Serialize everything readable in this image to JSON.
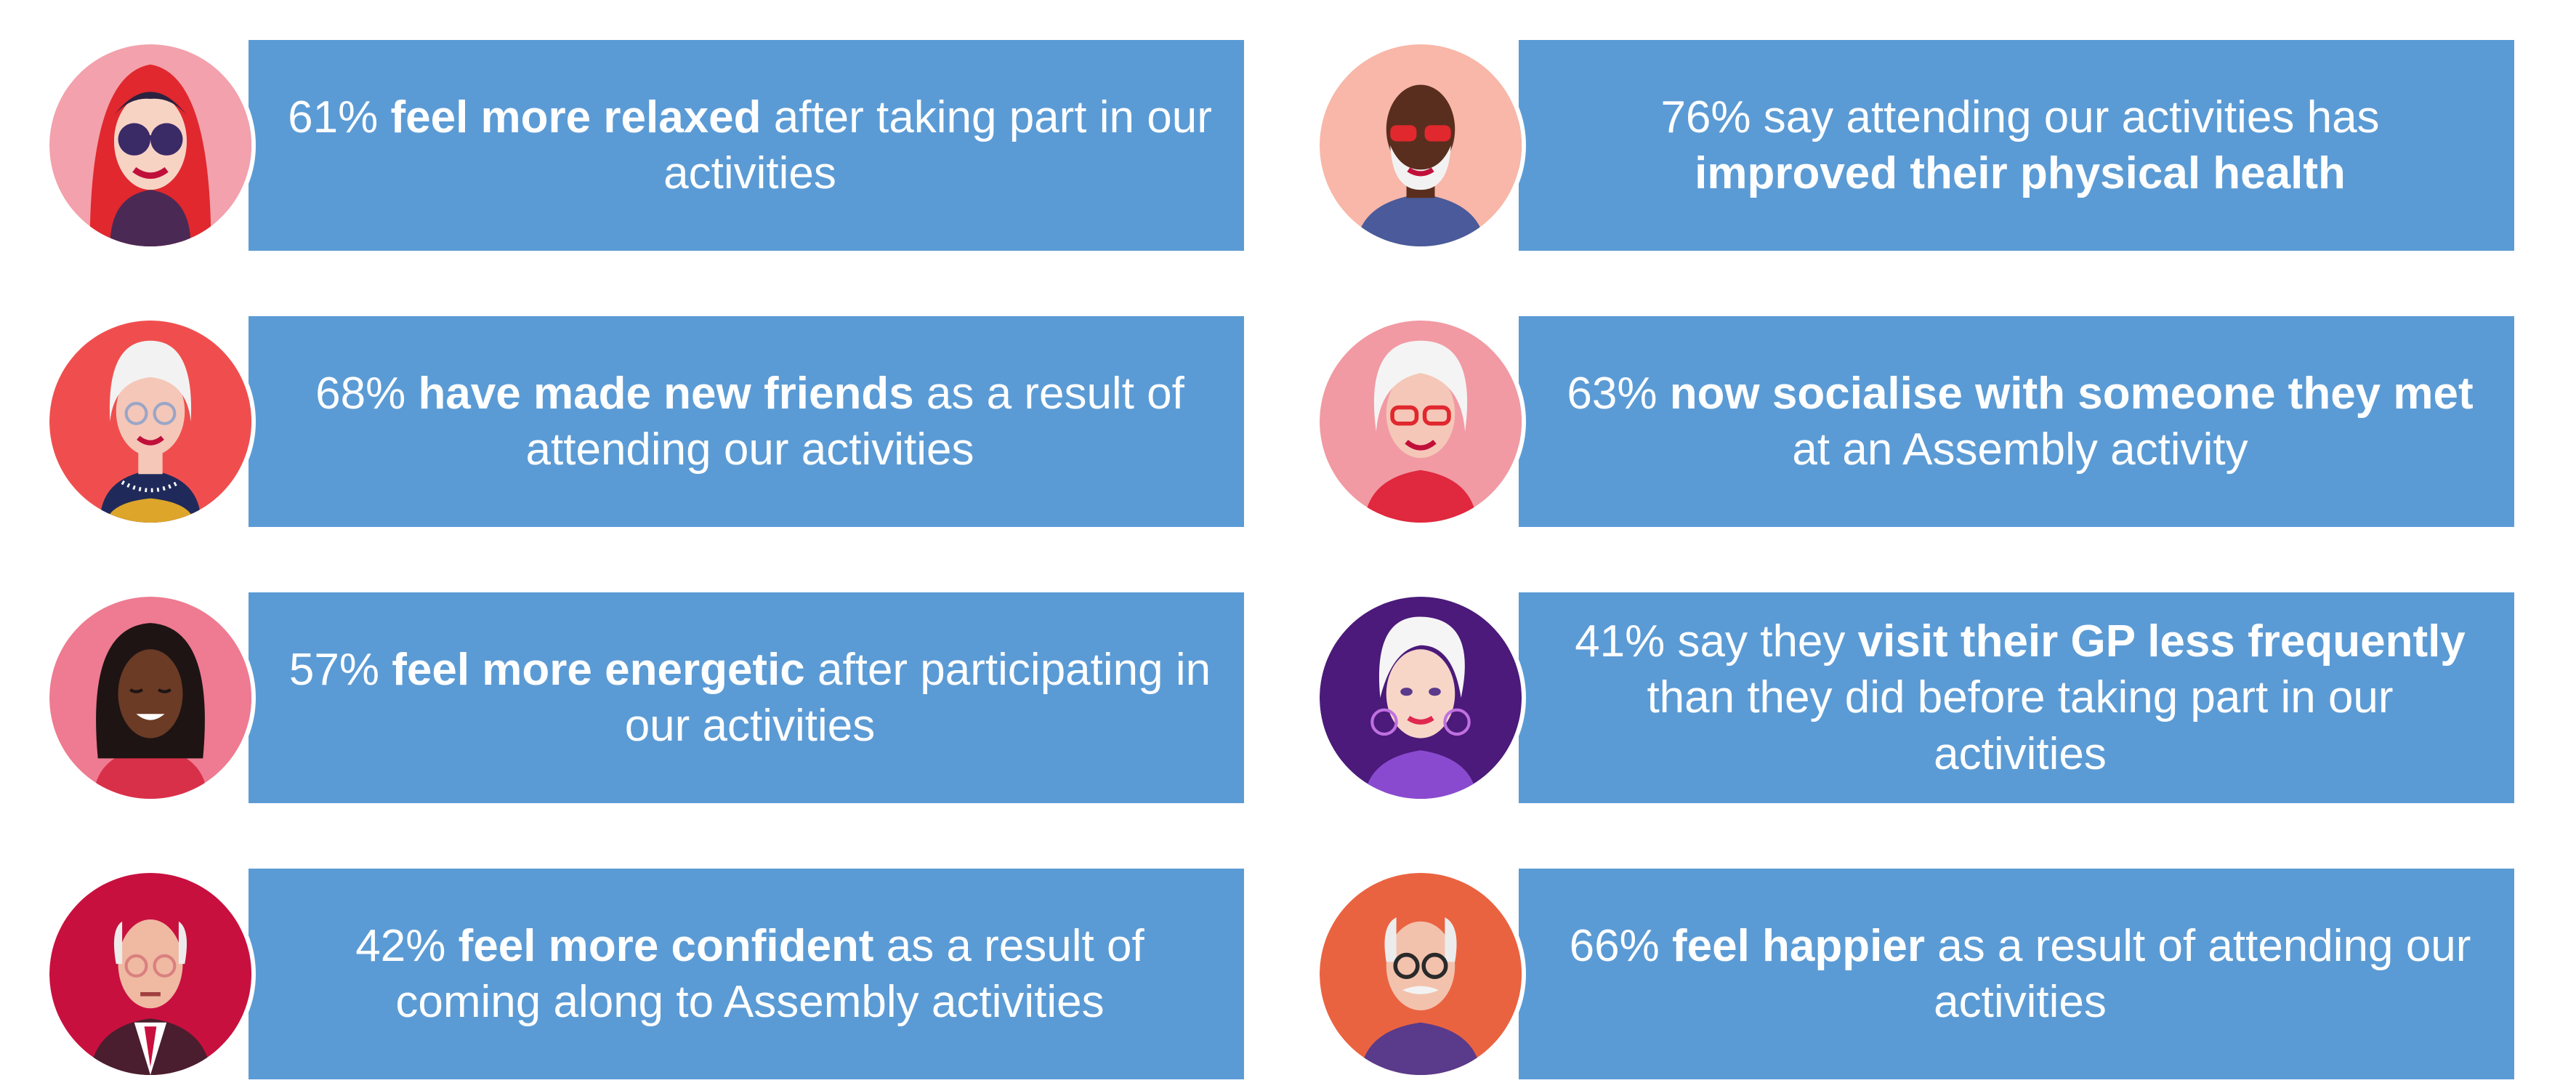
{
  "cards": [
    {
      "pre": "61% ",
      "bold": "feel more relaxed",
      "post": " after taking part in our activities",
      "avatar_icon": "woman-red-hood-sunglasses-icon",
      "avatar_bg": "#f3a1ac"
    },
    {
      "pre": "68% ",
      "bold": "have made new friends",
      "post": " as a result of attending our activities",
      "avatar_icon": "older-woman-glasses-pearls-icon",
      "avatar_bg": "#f04e4e"
    },
    {
      "pre": "57% ",
      "bold": "feel more energetic",
      "post": " after participating in our activities",
      "avatar_icon": "woman-dark-hair-icon",
      "avatar_bg": "#ee7b91"
    },
    {
      "pre": "42% ",
      "bold": "feel more confident",
      "post": " as a result of coming along to Assembly activities",
      "avatar_icon": "older-man-suit-tie-icon",
      "avatar_bg": "#c8103f"
    },
    {
      "pre": "76% say attending our activities has ",
      "bold": "improved their physical health",
      "post": "",
      "avatar_icon": "bald-man-beard-sunglasses-icon",
      "avatar_bg": "#f8b7a8"
    },
    {
      "pre": "63% ",
      "bold": "now socialise with someone they met",
      "post": " at an Assembly activity",
      "avatar_icon": "older-woman-red-glasses-icon",
      "avatar_bg": "#f19aa3"
    },
    {
      "pre": "41% say they ",
      "bold": "visit their GP less frequently",
      "post": " than they did before taking part in our activities",
      "avatar_icon": "older-woman-hoop-earrings-icon",
      "avatar_bg": "#4b1a7a"
    },
    {
      "pre": "66% ",
      "bold": "feel happier",
      "post": " as a result of attending our activities",
      "avatar_icon": "older-man-glasses-moustache-icon",
      "avatar_bg": "#ea6340"
    }
  ],
  "colors": {
    "banner": "#5b9bd5",
    "text": "#ffffff"
  }
}
